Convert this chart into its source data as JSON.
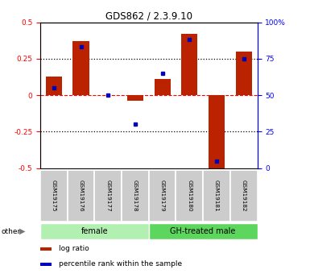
{
  "title": "GDS862 / 2.3.9.10",
  "samples": [
    "GSM19175",
    "GSM19176",
    "GSM19177",
    "GSM19178",
    "GSM19179",
    "GSM19180",
    "GSM19181",
    "GSM19182"
  ],
  "log_ratio": [
    0.13,
    0.37,
    0.0,
    -0.04,
    0.11,
    0.42,
    -0.5,
    0.3
  ],
  "percentile_rank": [
    55,
    83,
    50,
    30,
    65,
    88,
    5,
    75
  ],
  "groups": [
    {
      "label": "female",
      "start": 0,
      "end": 4,
      "color": "#b2f0b2"
    },
    {
      "label": "GH-treated male",
      "start": 4,
      "end": 8,
      "color": "#5cd65c"
    }
  ],
  "bar_color": "#BB2200",
  "point_color": "#0000BB",
  "ylim_left": [
    -0.5,
    0.5
  ],
  "ylim_right": [
    0,
    100
  ],
  "yticks_left": [
    -0.5,
    -0.25,
    0.0,
    0.25,
    0.5
  ],
  "ytick_labels_left": [
    "-0.5",
    "-0.25",
    "0",
    "0.25",
    "0.5"
  ],
  "yticks_right": [
    0,
    25,
    50,
    75,
    100
  ],
  "ytick_labels_right": [
    "0",
    "25",
    "50",
    "75",
    "100%"
  ],
  "background_color": "#ffffff",
  "legend_items": [
    {
      "label": "log ratio",
      "color": "#BB2200"
    },
    {
      "label": "percentile rank within the sample",
      "color": "#0000BB"
    }
  ]
}
